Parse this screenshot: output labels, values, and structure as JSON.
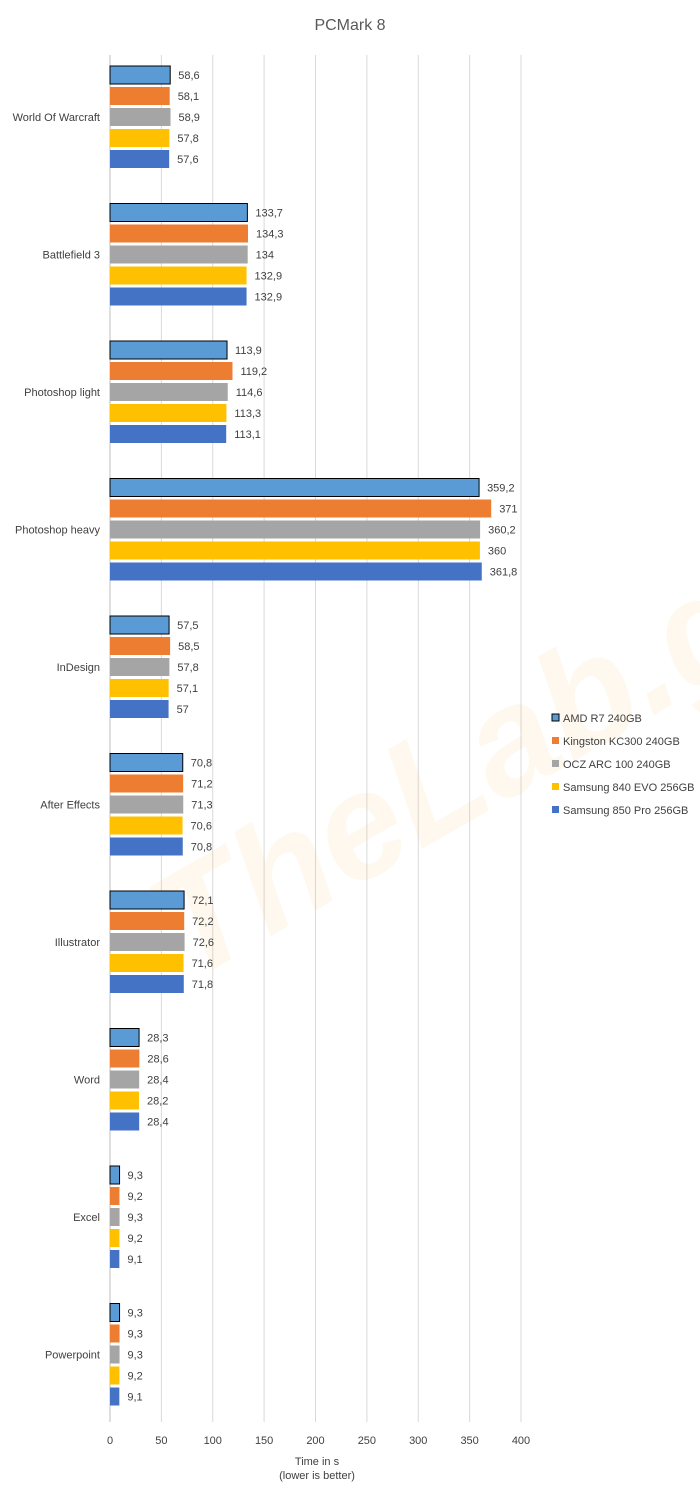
{
  "chart_data": {
    "type": "bar",
    "orientation": "horizontal",
    "title": "PCMark 8",
    "xlabel_line1": "Time in s",
    "xlabel_line2": "(lower is better)",
    "xlim": [
      0,
      400
    ],
    "xticks": [
      "0",
      "50",
      "100",
      "150",
      "200",
      "250",
      "300",
      "350",
      "400"
    ],
    "grid": true,
    "legend_position": "right",
    "categories": [
      "World Of Warcraft",
      "Battlefield 3",
      "Photoshop light",
      "Photoshop heavy",
      "InDesign",
      "After Effects",
      "Illustrator",
      "Word",
      "Excel",
      "Powerpoint"
    ],
    "series": [
      {
        "name": "AMD R7 240GB",
        "color": "#5b9bd5",
        "values": [
          58.6,
          133.7,
          113.9,
          359.2,
          57.5,
          70.8,
          72.1,
          28.3,
          9.3,
          9.3
        ],
        "labels": [
          "58,6",
          "133,7",
          "113,9",
          "359,2",
          "57,5",
          "70,8",
          "72,1",
          "28,3",
          "9,3",
          "9,3"
        ]
      },
      {
        "name": "Kingston KC300 240GB",
        "color": "#ed7d31",
        "values": [
          58.1,
          134.3,
          119.2,
          371,
          58.5,
          71.2,
          72.2,
          28.6,
          9.2,
          9.3
        ],
        "labels": [
          "58,1",
          "134,3",
          "119,2",
          "371",
          "58,5",
          "71,2",
          "72,2",
          "28,6",
          "9,2",
          "9,3"
        ]
      },
      {
        "name": "OCZ ARC 100 240GB",
        "color": "#a5a5a5",
        "values": [
          58.9,
          134,
          114.6,
          360.2,
          57.8,
          71.3,
          72.6,
          28.4,
          9.3,
          9.3
        ],
        "labels": [
          "58,9",
          "134",
          "114,6",
          "360,2",
          "57,8",
          "71,3",
          "72,6",
          "28,4",
          "9,3",
          "9,3"
        ]
      },
      {
        "name": "Samsung 840 EVO 256GB",
        "color": "#ffc000",
        "values": [
          57.8,
          132.9,
          113.3,
          360,
          57.1,
          70.6,
          71.6,
          28.2,
          9.2,
          9.2
        ],
        "labels": [
          "57,8",
          "132,9",
          "113,3",
          "360",
          "57,1",
          "70,6",
          "71,6",
          "28,2",
          "9,2",
          "9,2"
        ]
      },
      {
        "name": "Samsung 850 Pro 256GB",
        "color": "#4472c4",
        "values": [
          57.6,
          132.9,
          113.1,
          361.8,
          57,
          70.8,
          71.8,
          28.4,
          9.1,
          9.1
        ],
        "labels": [
          "57,6",
          "132,9",
          "113,1",
          "361,8",
          "57",
          "70,8",
          "71,8",
          "28,4",
          "9,1",
          "9,1"
        ]
      }
    ],
    "watermark": "TheLab.gr"
  }
}
